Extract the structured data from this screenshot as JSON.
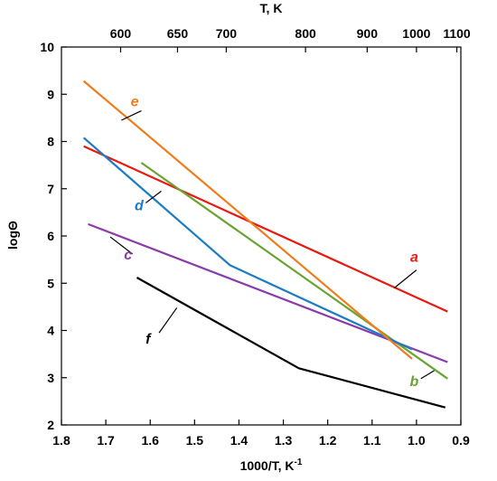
{
  "chart_data": {
    "type": "line",
    "xlabel": "1000/T, K",
    "xlabel_sup": "-1",
    "ylabel": "logΘ",
    "top_axis_title": "T, K",
    "xlim": [
      1.8,
      0.9
    ],
    "ylim": [
      2,
      10
    ],
    "x_ticks": [
      1.8,
      1.7,
      1.6,
      1.5,
      1.4,
      1.3,
      1.2,
      1.1,
      1.0,
      0.9
    ],
    "x_tick_labels": [
      "1.8",
      "1.7",
      "1.6",
      "1.5",
      "1.4",
      "1.3",
      "1.2",
      "1.1",
      "1.0",
      "0.9"
    ],
    "y_ticks": [
      2,
      3,
      4,
      5,
      6,
      7,
      8,
      9,
      10
    ],
    "y_tick_labels": [
      "2",
      "3",
      "4",
      "5",
      "6",
      "7",
      "8",
      "9",
      "10"
    ],
    "top_ticks": [
      600,
      650,
      700,
      800,
      900,
      1000,
      1100
    ],
    "top_tick_labels": [
      "600",
      "650",
      "700",
      "800",
      "900",
      "1000",
      "1100"
    ],
    "grid": false,
    "legend": "none",
    "series": [
      {
        "name": "a",
        "color": "#e8190f",
        "x": [
          1.75,
          0.93
        ],
        "y": [
          7.9,
          4.4
        ]
      },
      {
        "name": "b",
        "color": "#6aa330",
        "x": [
          1.62,
          0.93
        ],
        "y": [
          7.55,
          2.98
        ]
      },
      {
        "name": "c",
        "color": "#8b3aaa",
        "x": [
          1.74,
          0.93
        ],
        "y": [
          6.25,
          3.33
        ]
      },
      {
        "name": "d",
        "color": "#1c7cc3",
        "x": [
          1.75,
          1.42,
          1.01
        ],
        "y": [
          8.08,
          5.38,
          3.6
        ]
      },
      {
        "name": "e",
        "color": "#f07c1c",
        "x": [
          1.75,
          1.01
        ],
        "y": [
          9.28,
          3.4
        ]
      },
      {
        "name": "f",
        "color": "#000000",
        "x": [
          1.63,
          1.265,
          0.935
        ],
        "y": [
          5.12,
          3.2,
          2.37
        ]
      }
    ],
    "annotations": [
      {
        "series": "a",
        "text": "a",
        "x": 1.005,
        "y": 5.45,
        "lx": [
          1.05,
          1.0
        ],
        "ly": [
          4.9,
          5.28
        ]
      },
      {
        "series": "b",
        "text": "b",
        "x": 1.005,
        "y": 2.82,
        "lx": [
          0.99,
          0.96
        ],
        "ly": [
          2.98,
          3.15
        ]
      },
      {
        "series": "c",
        "text": "c",
        "x": 1.65,
        "y": 5.5,
        "lx": [
          1.64,
          1.69
        ],
        "ly": [
          5.62,
          5.98
        ]
      },
      {
        "series": "d",
        "text": "d",
        "x": 1.625,
        "y": 6.55,
        "lx": [
          1.61,
          1.575
        ],
        "ly": [
          6.7,
          6.95
        ]
      },
      {
        "series": "e",
        "text": "e",
        "x": 1.635,
        "y": 8.75,
        "lx": [
          1.665,
          1.62
        ],
        "ly": [
          8.45,
          8.65
        ]
      },
      {
        "series": "f",
        "text": "f",
        "x": 1.605,
        "y": 3.72,
        "lx": [
          1.58,
          1.54
        ],
        "ly": [
          3.95,
          4.48
        ]
      }
    ]
  }
}
